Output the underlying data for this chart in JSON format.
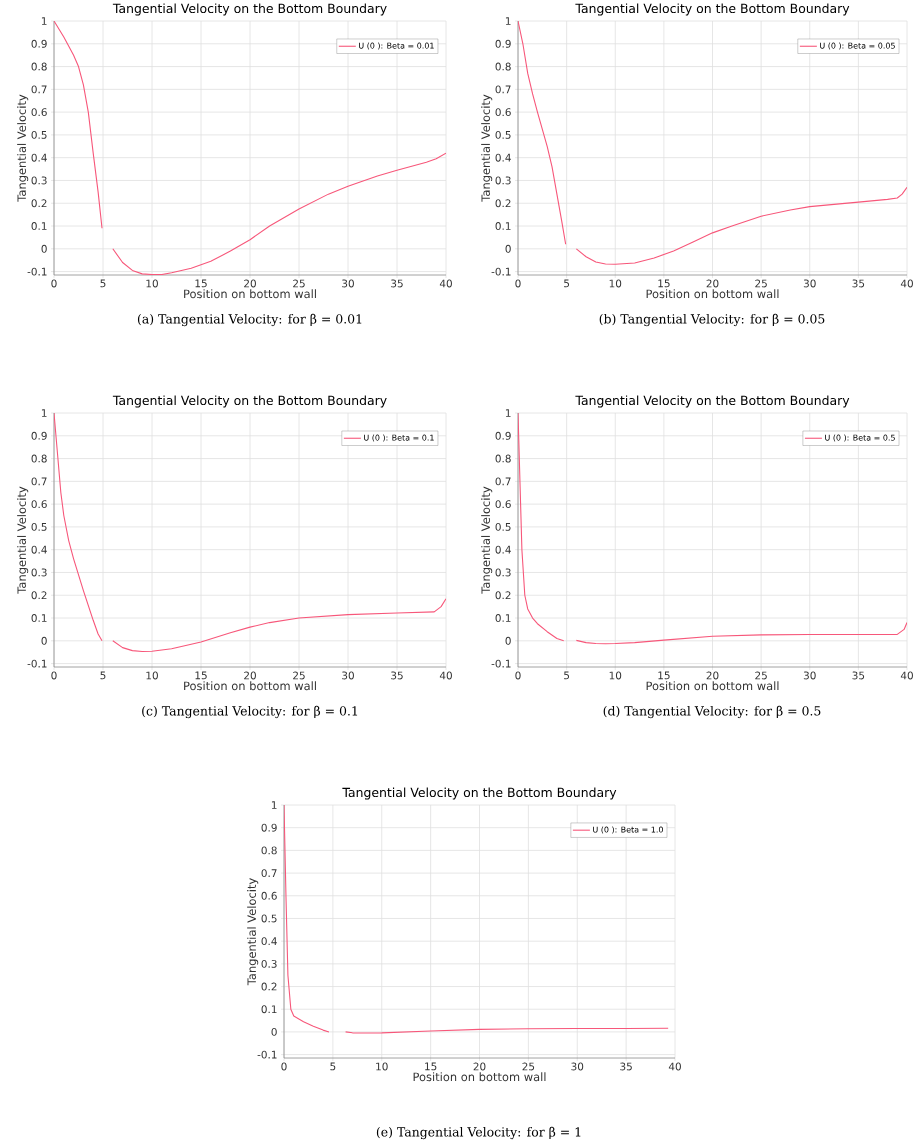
{
  "chart_data": [
    {
      "type": "line",
      "title": "Tangential Velocity on the Bottom Boundary",
      "xlabel": "Position on bottom wall",
      "ylabel": "Tangential Velocity",
      "annotations": [
        "(a) Tangential Velocity: for β = 0.01"
      ],
      "x": [
        0,
        1,
        2,
        2.5,
        3,
        3.5,
        4,
        4.5,
        4.9,
        5.5,
        6,
        7,
        8,
        9,
        10,
        11,
        12,
        14,
        16,
        18,
        20,
        22,
        25,
        28,
        30,
        33,
        35,
        38,
        39,
        40
      ],
      "series": [
        {
          "name": "U (0 ): Beta = 0.01",
          "color": "#f7577a",
          "values": [
            1,
            0.93,
            0.85,
            0.8,
            0.72,
            0.6,
            0.42,
            0.25,
            0.09,
            null,
            0,
            -0.06,
            -0.095,
            -0.11,
            -0.113,
            -0.113,
            -0.105,
            -0.085,
            -0.055,
            -0.01,
            0.04,
            0.1,
            0.175,
            0.24,
            0.275,
            0.32,
            0.345,
            0.38,
            0.395,
            0.42
          ]
        }
      ],
      "xlim": [
        0,
        40
      ],
      "ylim": [
        -0.115,
        1
      ],
      "xticks": [
        0,
        5,
        10,
        15,
        20,
        25,
        30,
        35,
        40
      ],
      "yticks": [
        -0.1,
        0,
        0.1,
        0.2,
        0.3,
        0.4,
        0.5,
        0.6,
        0.7,
        0.8,
        0.9,
        1
      ],
      "grid": true,
      "legend": "top right"
    },
    {
      "type": "line",
      "title": "Tangential Velocity on the Bottom Boundary",
      "xlabel": "Position on bottom wall",
      "ylabel": "Tangential Velocity",
      "annotations": [
        "(b) Tangential Velocity: for β = 0.05"
      ],
      "x": [
        0,
        0.5,
        1,
        1.5,
        2,
        3,
        3.5,
        4,
        4.5,
        4.9,
        5.5,
        6,
        7,
        8,
        9,
        10,
        12,
        14,
        16,
        18,
        20,
        22,
        25,
        28,
        30,
        35,
        38,
        39,
        39.5,
        40
      ],
      "series": [
        {
          "name": "U (0 ): Beta = 0.05",
          "color": "#f7577a",
          "values": [
            1,
            0.9,
            0.77,
            0.68,
            0.6,
            0.45,
            0.36,
            0.24,
            0.12,
            0.02,
            null,
            0,
            -0.035,
            -0.058,
            -0.067,
            -0.068,
            -0.062,
            -0.04,
            -0.01,
            0.03,
            0.07,
            0.1,
            0.143,
            0.17,
            0.185,
            0.205,
            0.217,
            0.223,
            0.24,
            0.27
          ]
        }
      ],
      "xlim": [
        0,
        40
      ],
      "ylim": [
        -0.115,
        1
      ],
      "xticks": [
        0,
        5,
        10,
        15,
        20,
        25,
        30,
        35,
        40
      ],
      "yticks": [
        -0.1,
        0,
        0.1,
        0.2,
        0.3,
        0.4,
        0.5,
        0.6,
        0.7,
        0.8,
        0.9,
        1
      ],
      "grid": true,
      "legend": "top right"
    },
    {
      "type": "line",
      "title": "Tangential Velocity on the Bottom Boundary",
      "xlabel": "Position on bottom wall",
      "ylabel": "Tangential Velocity",
      "annotations": [
        "(c) Tangential Velocity: for β = 0.1"
      ],
      "x": [
        0,
        0.3,
        0.7,
        1,
        1.5,
        2,
        3,
        4,
        4.5,
        4.9,
        5.5,
        6,
        7,
        8,
        9,
        10,
        12,
        15,
        18,
        20,
        22,
        25,
        30,
        35,
        38.8,
        39.5,
        40
      ],
      "series": [
        {
          "name": "U (0 ): Beta = 0.1",
          "color": "#f7577a",
          "values": [
            1,
            0.85,
            0.65,
            0.55,
            0.44,
            0.36,
            0.22,
            0.09,
            0.03,
            0,
            null,
            0,
            -0.03,
            -0.043,
            -0.047,
            -0.046,
            -0.035,
            -0.005,
            0.035,
            0.06,
            0.08,
            0.1,
            0.115,
            0.122,
            0.127,
            0.15,
            0.185
          ]
        }
      ],
      "xlim": [
        0,
        40
      ],
      "ylim": [
        -0.115,
        1
      ],
      "xticks": [
        0,
        5,
        10,
        15,
        20,
        25,
        30,
        35,
        40
      ],
      "yticks": [
        -0.1,
        0,
        0.1,
        0.2,
        0.3,
        0.4,
        0.5,
        0.6,
        0.7,
        0.8,
        0.9,
        1
      ],
      "grid": true,
      "legend": "top right"
    },
    {
      "type": "line",
      "title": "Tangential Velocity on the Bottom Boundary",
      "xlabel": "Position on bottom wall",
      "ylabel": "Tangential Velocity",
      "annotations": [
        "(d) Tangential Velocity: for β = 0.5"
      ],
      "x": [
        0,
        0.2,
        0.4,
        0.7,
        1,
        1.5,
        2,
        3,
        4,
        4.7,
        5.5,
        6,
        7,
        8,
        9,
        10,
        12,
        15,
        20,
        25,
        30,
        35,
        39,
        39.7,
        40
      ],
      "series": [
        {
          "name": "U (0 ): Beta = 0.5",
          "color": "#f7577a",
          "values": [
            1,
            0.7,
            0.4,
            0.2,
            0.14,
            0.1,
            0.075,
            0.04,
            0.01,
            0,
            null,
            0.002,
            -0.008,
            -0.012,
            -0.013,
            -0.012,
            -0.008,
            0.003,
            0.02,
            0.026,
            0.028,
            0.028,
            0.028,
            0.05,
            0.08
          ]
        }
      ],
      "xlim": [
        0,
        40
      ],
      "ylim": [
        -0.115,
        1
      ],
      "xticks": [
        0,
        5,
        10,
        15,
        20,
        25,
        30,
        35,
        40
      ],
      "yticks": [
        -0.1,
        0,
        0.1,
        0.2,
        0.3,
        0.4,
        0.5,
        0.6,
        0.7,
        0.8,
        0.9,
        1
      ],
      "grid": true,
      "legend": "top right"
    },
    {
      "type": "line",
      "title": "Tangential Velocity on the Bottom Boundary",
      "xlabel": "Position on bottom wall",
      "ylabel": "Tangential Velocity",
      "annotations": [
        "(e) Tangential Velocity: for β = 1"
      ],
      "x": [
        0,
        0.2,
        0.4,
        0.7,
        1,
        2,
        3,
        4,
        4.6,
        5.5,
        6.3,
        7,
        8,
        10,
        15,
        20,
        25,
        30,
        35,
        39.3
      ],
      "series": [
        {
          "name": "U (0 ): Beta = 1.0",
          "color": "#f7577a",
          "values": [
            1,
            0.6,
            0.25,
            0.1,
            0.07,
            0.045,
            0.025,
            0.008,
            0,
            null,
            0,
            -0.004,
            -0.005,
            -0.004,
            0.004,
            0.011,
            0.014,
            0.015,
            0.015,
            0.016
          ]
        }
      ],
      "xlim": [
        0,
        40
      ],
      "ylim": [
        -0.115,
        1
      ],
      "xticks": [
        0,
        5,
        10,
        15,
        20,
        25,
        30,
        35,
        40
      ],
      "yticks": [
        -0.1,
        0,
        0.1,
        0.2,
        0.3,
        0.4,
        0.5,
        0.6,
        0.7,
        0.8,
        0.9,
        1
      ],
      "grid": true,
      "legend": "top right"
    }
  ]
}
